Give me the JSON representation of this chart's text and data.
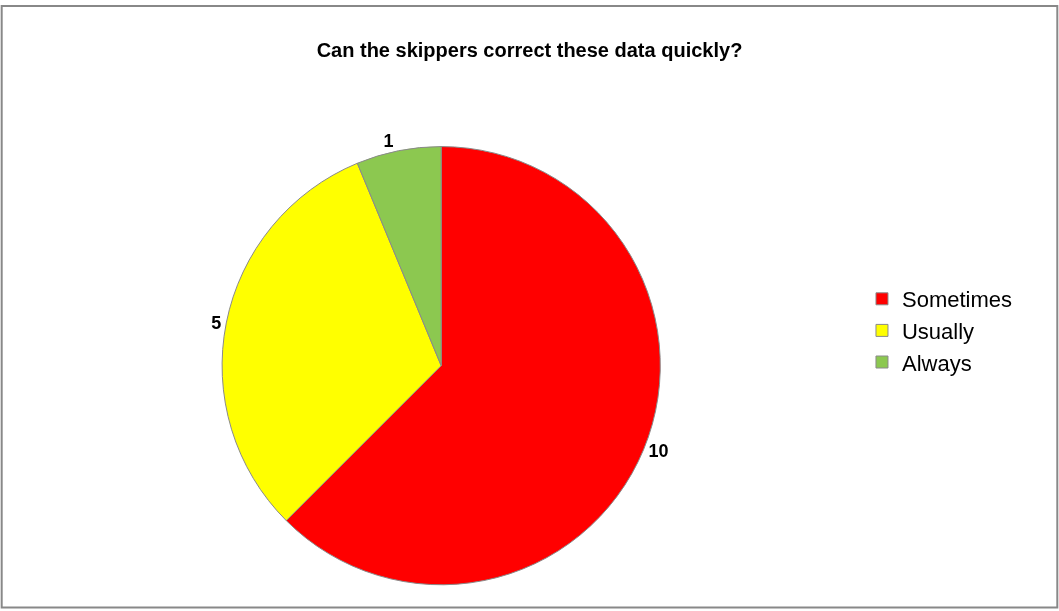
{
  "chart_data": {
    "type": "pie",
    "title": "Can the skippers correct these data quickly?",
    "categories": [
      "Sometimes",
      "Usually",
      "Always"
    ],
    "values": [
      10,
      5,
      1
    ],
    "colors": [
      "#ff0000",
      "#ffff00",
      "#8cc850"
    ],
    "data_labels": true,
    "legend": "right"
  }
}
